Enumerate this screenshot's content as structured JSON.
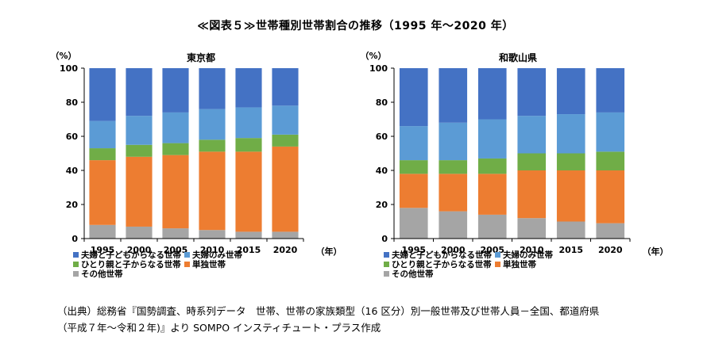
{
  "title": "≪図表５≫世帯種別世帯割合の推移（1995 年～2020 年）",
  "source_line1": "（出典）総務省『国勢調査、時系列データ　世帯、世帯の家族類型（16 区分）別一般世帯及び世帯人員－全国、都道府県",
  "source_line2": "（平成７年～令和２年)』より SOMPO インスティチュート・プラス作成",
  "chart_data": [
    {
      "type": "bar",
      "stacked": true,
      "title": "東京都",
      "ylabel": "（%）",
      "xlabel": "（年）",
      "ylim": [
        0,
        100
      ],
      "yticks": [
        "0",
        "20",
        "40",
        "60",
        "80",
        "100"
      ],
      "categories": [
        "1995",
        "2000",
        "2005",
        "2010",
        "2015",
        "2020"
      ],
      "series": [
        {
          "name": "その他世帯",
          "color": "#a5a5a5",
          "values": [
            8,
            7,
            6,
            5,
            4,
            4
          ]
        },
        {
          "name": "単独世帯",
          "color": "#ed7d31",
          "values": [
            38,
            41,
            43,
            46,
            47,
            50
          ]
        },
        {
          "name": "ひとり親と子からなる世帯",
          "color": "#70ad47",
          "values": [
            7,
            7,
            7,
            7,
            8,
            7
          ]
        },
        {
          "name": "夫婦のみ世帯",
          "color": "#5b9bd5",
          "values": [
            16,
            17,
            18,
            18,
            18,
            17
          ]
        },
        {
          "name": "夫婦と子どもからなる世帯",
          "color": "#4472c4",
          "values": [
            31,
            28,
            26,
            24,
            23,
            22
          ]
        }
      ],
      "legend": "bottom"
    },
    {
      "type": "bar",
      "stacked": true,
      "title": "和歌山県",
      "ylabel": "（%）",
      "xlabel": "（年）",
      "ylim": [
        0,
        100
      ],
      "yticks": [
        "0",
        "20",
        "40",
        "60",
        "80",
        "100"
      ],
      "categories": [
        "1995",
        "2000",
        "2005",
        "2010",
        "2015",
        "2020"
      ],
      "series": [
        {
          "name": "その他世帯",
          "color": "#a5a5a5",
          "values": [
            18,
            16,
            14,
            12,
            10,
            9
          ]
        },
        {
          "name": "単独世帯",
          "color": "#ed7d31",
          "values": [
            20,
            22,
            24,
            28,
            30,
            31
          ]
        },
        {
          "name": "ひとり親と子からなる世帯",
          "color": "#70ad47",
          "values": [
            8,
            8,
            9,
            10,
            10,
            11
          ]
        },
        {
          "name": "夫婦のみ世帯",
          "color": "#5b9bd5",
          "values": [
            20,
            22,
            23,
            22,
            23,
            23
          ]
        },
        {
          "name": "夫婦と子どもからなる世帯",
          "color": "#4472c4",
          "values": [
            34,
            32,
            30,
            28,
            27,
            26
          ]
        }
      ],
      "legend": "bottom"
    }
  ]
}
